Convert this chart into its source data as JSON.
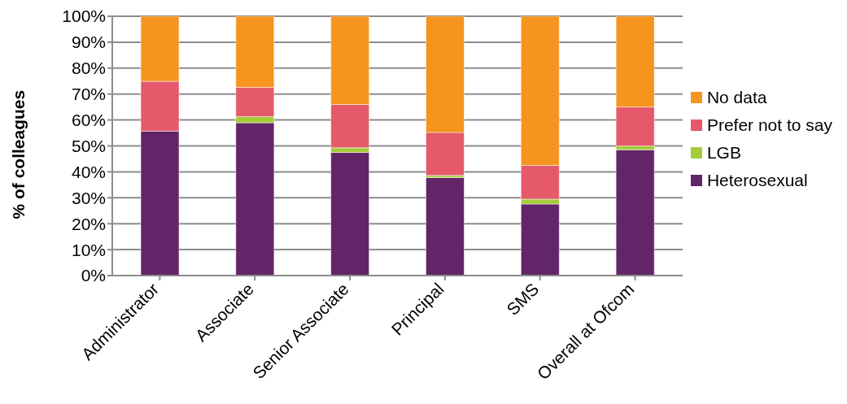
{
  "chart_data": {
    "type": "bar",
    "stacked": true,
    "ylabel": "% of colleagues",
    "categories": [
      "Administrator",
      "Associate",
      "Senior Associate",
      "Principal",
      "SMS",
      "Overall at Ofcom"
    ],
    "series": [
      {
        "name": "Heterosexual",
        "color": "#622567",
        "values": [
          55.7,
          58.9,
          47.5,
          37.8,
          27.6,
          48.5
        ]
      },
      {
        "name": "LGB",
        "color": "#a4cd39",
        "values": [
          0,
          2.4,
          1.8,
          0.8,
          1.9,
          1.5
        ]
      },
      {
        "name": "Prefer not to say",
        "color": "#e5596a",
        "values": [
          19.2,
          11.3,
          16.7,
          16.6,
          13,
          15
        ]
      },
      {
        "name": "No data",
        "color": "#f5951f",
        "values": [
          25.1,
          27.4,
          34,
          44.8,
          57.5,
          35
        ]
      }
    ],
    "ylim": [
      0,
      100
    ],
    "yticks": [
      {
        "value": 0,
        "label": "0%"
      },
      {
        "value": 10,
        "label": "10%"
      },
      {
        "value": 20,
        "label": "20%"
      },
      {
        "value": 30,
        "label": "30%"
      },
      {
        "value": 40,
        "label": "40%"
      },
      {
        "value": 50,
        "label": "50%"
      },
      {
        "value": 60,
        "label": "60%"
      },
      {
        "value": 70,
        "label": "70%"
      },
      {
        "value": 80,
        "label": "80%"
      },
      {
        "value": 90,
        "label": "90%"
      },
      {
        "value": 100,
        "label": "100%"
      }
    ],
    "grid": "y",
    "legend": "right"
  }
}
